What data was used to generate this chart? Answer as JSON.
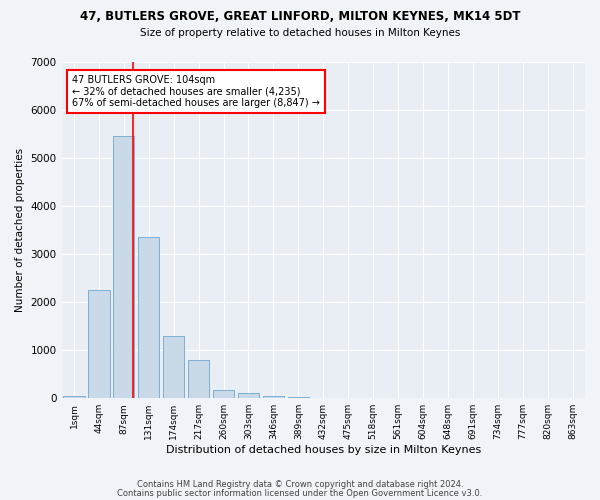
{
  "title1": "47, BUTLERS GROVE, GREAT LINFORD, MILTON KEYNES, MK14 5DT",
  "title2": "Size of property relative to detached houses in Milton Keynes",
  "xlabel": "Distribution of detached houses by size in Milton Keynes",
  "ylabel": "Number of detached properties",
  "bar_color": "#c9d9e8",
  "bar_edge_color": "#7bafd4",
  "background_color": "#e8eef4",
  "grid_color": "#ffffff",
  "fig_background": "#f0f4f8",
  "categories": [
    "1sqm",
    "44sqm",
    "87sqm",
    "131sqm",
    "174sqm",
    "217sqm",
    "260sqm",
    "303sqm",
    "346sqm",
    "389sqm",
    "432sqm",
    "475sqm",
    "518sqm",
    "561sqm",
    "604sqm",
    "648sqm",
    "691sqm",
    "734sqm",
    "777sqm",
    "820sqm",
    "863sqm"
  ],
  "values": [
    50,
    2250,
    5450,
    3350,
    1300,
    800,
    180,
    100,
    50,
    15,
    5,
    2,
    1,
    0,
    0,
    0,
    0,
    0,
    0,
    0,
    0
  ],
  "ylim": [
    0,
    7000
  ],
  "yticks": [
    0,
    1000,
    2000,
    3000,
    4000,
    5000,
    6000,
    7000
  ],
  "annotation_line1": "47 BUTLERS GROVE: 104sqm",
  "annotation_line2": "← 32% of detached houses are smaller (4,235)",
  "annotation_line3": "67% of semi-detached houses are larger (8,847) →",
  "footer1": "Contains HM Land Registry data © Crown copyright and database right 2024.",
  "footer2": "Contains public sector information licensed under the Open Government Licence v3.0."
}
